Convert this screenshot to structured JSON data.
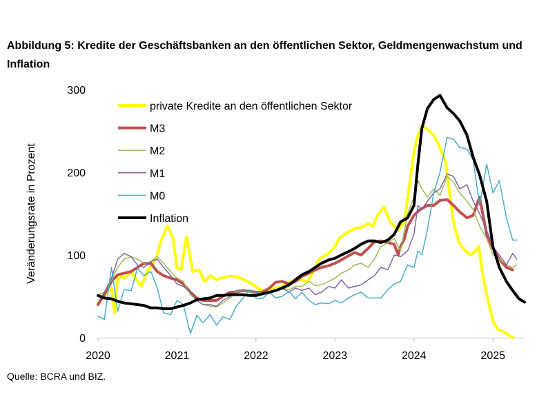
{
  "figure": {
    "title": "Abbildung 5: Kredite der Geschäftsbanken an den öffentlichen Sektor, Geldmengenwachstum und Inflation",
    "source": "Quelle: BCRA und BIZ."
  },
  "chart_data": {
    "type": "line",
    "title": "Abbildung 5: Kredite der Geschäftsbanken an den öffentlichen Sektor, Geldmengenwachstum und Inflation",
    "xlabel": "",
    "ylabel": "Veränderungsrate in Prozent",
    "xlim": [
      2020.0,
      2025.4
    ],
    "ylim": [
      0,
      300
    ],
    "yticks": [
      0,
      100,
      200,
      300
    ],
    "xticks": [
      2020,
      2021,
      2022,
      2023,
      2024,
      2025
    ],
    "grid": false,
    "legend_position": "top-left",
    "series": [
      {
        "name": "private Kredite an den öffentlichen Sektor",
        "color": "#FFFF00",
        "width": 4,
        "x": [
          2020.0,
          2020.08,
          2020.17,
          2020.21,
          2020.25,
          2020.33,
          2020.42,
          2020.5,
          2020.55,
          2020.62,
          2020.7,
          2020.75,
          2020.8,
          2020.88,
          2020.95,
          2021.0,
          2021.05,
          2021.12,
          2021.2,
          2021.28,
          2021.35,
          2021.42,
          2021.5,
          2021.55,
          2021.65,
          2021.75,
          2021.85,
          2021.95,
          2022.05,
          2022.15,
          2022.25,
          2022.35,
          2022.45,
          2022.55,
          2022.65,
          2022.7,
          2022.8,
          2022.85,
          2022.92,
          2023.0,
          2023.05,
          2023.15,
          2023.25,
          2023.35,
          2023.42,
          2023.48,
          2023.55,
          2023.62,
          2023.7,
          2023.8,
          2023.88,
          2023.95,
          2024.0,
          2024.05,
          2024.1,
          2024.17,
          2024.25,
          2024.32,
          2024.4,
          2024.45,
          2024.5,
          2024.57,
          2024.65,
          2024.72,
          2024.78,
          2024.82,
          2024.88,
          2024.95,
          2025.0,
          2025.06,
          2025.12,
          2025.2,
          2025.25
        ],
        "values": [
          42,
          52,
          60,
          30,
          75,
          72,
          80,
          68,
          62,
          80,
          90,
          100,
          118,
          135,
          120,
          85,
          82,
          122,
          80,
          82,
          68,
          75,
          70,
          72,
          74,
          74,
          70,
          65,
          58,
          57,
          60,
          63,
          68,
          70,
          68,
          75,
          95,
          98,
          102,
          110,
          120,
          127,
          132,
          134,
          138,
          135,
          150,
          158,
          140,
          130,
          140,
          190,
          225,
          245,
          256,
          252,
          245,
          232,
          212,
          175,
          140,
          115,
          105,
          100,
          105,
          110,
          70,
          40,
          20,
          10,
          8,
          3,
          0
        ]
      },
      {
        "name": "M3",
        "color": "#C0504D",
        "width": 4,
        "x": [
          2020.0,
          2020.08,
          2020.17,
          2020.25,
          2020.33,
          2020.42,
          2020.5,
          2020.58,
          2020.67,
          2020.75,
          2020.83,
          2020.92,
          2021.0,
          2021.08,
          2021.17,
          2021.25,
          2021.33,
          2021.42,
          2021.5,
          2021.58,
          2021.67,
          2021.75,
          2021.83,
          2021.92,
          2022.0,
          2022.08,
          2022.17,
          2022.25,
          2022.33,
          2022.42,
          2022.5,
          2022.58,
          2022.67,
          2022.75,
          2022.83,
          2022.92,
          2023.0,
          2023.08,
          2023.17,
          2023.25,
          2023.33,
          2023.42,
          2023.5,
          2023.58,
          2023.67,
          2023.75,
          2023.8,
          2023.83,
          2023.88,
          2023.92,
          2024.0,
          2024.08,
          2024.17,
          2024.25,
          2024.33,
          2024.42,
          2024.5,
          2024.58,
          2024.67,
          2024.75,
          2024.83,
          2024.92,
          2025.0,
          2025.08,
          2025.17,
          2025.25
        ],
        "values": [
          40,
          52,
          68,
          76,
          78,
          80,
          85,
          90,
          90,
          80,
          75,
          72,
          70,
          65,
          55,
          48,
          45,
          45,
          45,
          50,
          55,
          55,
          57,
          56,
          55,
          55,
          60,
          67,
          68,
          65,
          68,
          74,
          78,
          82,
          85,
          87,
          90,
          94,
          99,
          103,
          100,
          108,
          116,
          117,
          115,
          113,
          100,
          110,
          120,
          135,
          148,
          155,
          160,
          160,
          166,
          167,
          160,
          152,
          145,
          148,
          170,
          125,
          108,
          95,
          85,
          82
        ]
      },
      {
        "name": "M2",
        "color": "#9BBB59",
        "width": 1.5,
        "x": [
          2020.0,
          2020.08,
          2020.17,
          2020.25,
          2020.33,
          2020.42,
          2020.5,
          2020.58,
          2020.67,
          2020.75,
          2020.83,
          2020.92,
          2021.0,
          2021.08,
          2021.17,
          2021.25,
          2021.33,
          2021.42,
          2021.5,
          2021.58,
          2021.67,
          2021.75,
          2021.83,
          2021.92,
          2022.0,
          2022.08,
          2022.17,
          2022.25,
          2022.33,
          2022.42,
          2022.5,
          2022.58,
          2022.67,
          2022.75,
          2022.83,
          2022.92,
          2023.0,
          2023.08,
          2023.17,
          2023.25,
          2023.33,
          2023.42,
          2023.5,
          2023.58,
          2023.67,
          2023.75,
          2023.83,
          2023.92,
          2024.0,
          2024.05,
          2024.1,
          2024.17,
          2024.25,
          2024.33,
          2024.42,
          2024.5,
          2024.58,
          2024.67,
          2024.75,
          2024.83,
          2024.92,
          2025.0,
          2025.08,
          2025.17,
          2025.25,
          2025.3
        ],
        "values": [
          52,
          55,
          70,
          85,
          95,
          98,
          95,
          90,
          92,
          98,
          90,
          80,
          72,
          68,
          52,
          45,
          40,
          38,
          37,
          42,
          48,
          55,
          58,
          55,
          55,
          54,
          56,
          58,
          60,
          58,
          62,
          62,
          68,
          63,
          64,
          68,
          72,
          78,
          82,
          88,
          90,
          85,
          95,
          110,
          115,
          120,
          105,
          150,
          170,
          190,
          180,
          170,
          180,
          172,
          195,
          188,
          175,
          165,
          155,
          135,
          120,
          100,
          95,
          88,
          85,
          88
        ]
      },
      {
        "name": "M1",
        "color": "#8064A2",
        "width": 1.5,
        "x": [
          2020.0,
          2020.08,
          2020.17,
          2020.25,
          2020.33,
          2020.42,
          2020.5,
          2020.58,
          2020.67,
          2020.75,
          2020.83,
          2020.92,
          2021.0,
          2021.08,
          2021.17,
          2021.25,
          2021.33,
          2021.42,
          2021.5,
          2021.58,
          2021.67,
          2021.75,
          2021.83,
          2021.92,
          2022.0,
          2022.08,
          2022.17,
          2022.25,
          2022.33,
          2022.42,
          2022.5,
          2022.58,
          2022.67,
          2022.75,
          2022.83,
          2022.92,
          2023.0,
          2023.08,
          2023.17,
          2023.25,
          2023.33,
          2023.42,
          2023.5,
          2023.58,
          2023.67,
          2023.75,
          2023.83,
          2023.92,
          2024.0,
          2024.05,
          2024.1,
          2024.17,
          2024.25,
          2024.33,
          2024.42,
          2024.5,
          2024.58,
          2024.67,
          2024.75,
          2024.83,
          2024.92,
          2025.0,
          2025.08,
          2025.17,
          2025.25,
          2025.3
        ],
        "values": [
          42,
          55,
          72,
          95,
          102,
          98,
          88,
          85,
          92,
          95,
          85,
          75,
          65,
          62,
          55,
          45,
          40,
          40,
          38,
          45,
          50,
          57,
          58,
          57,
          55,
          52,
          55,
          58,
          60,
          55,
          60,
          57,
          60,
          52,
          55,
          62,
          60,
          70,
          60,
          62,
          64,
          70,
          75,
          85,
          82,
          100,
          98,
          105,
          125,
          160,
          155,
          165,
          175,
          180,
          198,
          195,
          180,
          185,
          165,
          150,
          130,
          110,
          100,
          88,
          102,
          95
        ]
      },
      {
        "name": "M0",
        "color": "#4BACC6",
        "width": 1.5,
        "x": [
          2020.0,
          2020.08,
          2020.17,
          2020.25,
          2020.33,
          2020.42,
          2020.5,
          2020.58,
          2020.67,
          2020.75,
          2020.83,
          2020.92,
          2021.0,
          2021.08,
          2021.17,
          2021.25,
          2021.33,
          2021.42,
          2021.5,
          2021.58,
          2021.67,
          2021.75,
          2021.83,
          2021.92,
          2022.0,
          2022.08,
          2022.17,
          2022.25,
          2022.33,
          2022.42,
          2022.5,
          2022.58,
          2022.67,
          2022.75,
          2022.83,
          2022.92,
          2023.0,
          2023.08,
          2023.17,
          2023.25,
          2023.33,
          2023.42,
          2023.5,
          2023.58,
          2023.67,
          2023.75,
          2023.83,
          2023.92,
          2024.0,
          2024.05,
          2024.1,
          2024.17,
          2024.25,
          2024.33,
          2024.42,
          2024.5,
          2024.58,
          2024.67,
          2024.75,
          2024.83,
          2024.92,
          2025.0,
          2025.08,
          2025.17,
          2025.25,
          2025.3
        ],
        "values": [
          26,
          22,
          85,
          32,
          58,
          57,
          84,
          75,
          80,
          60,
          30,
          28,
          45,
          40,
          5,
          27,
          18,
          28,
          15,
          25,
          22,
          38,
          47,
          58,
          48,
          47,
          55,
          48,
          50,
          56,
          47,
          55,
          45,
          40,
          42,
          41,
          45,
          42,
          48,
          52,
          55,
          48,
          48,
          48,
          58,
          65,
          68,
          88,
          85,
          105,
          100,
          130,
          175,
          200,
          242,
          240,
          230,
          228,
          215,
          160,
          210,
          175,
          190,
          145,
          118,
          118
        ]
      },
      {
        "name": "Inflation",
        "color": "#000000",
        "width": 4,
        "x": [
          2020.0,
          2020.08,
          2020.17,
          2020.25,
          2020.33,
          2020.42,
          2020.5,
          2020.58,
          2020.67,
          2020.75,
          2020.83,
          2020.92,
          2021.0,
          2021.08,
          2021.17,
          2021.25,
          2021.33,
          2021.42,
          2021.5,
          2021.58,
          2021.67,
          2021.75,
          2021.83,
          2021.92,
          2022.0,
          2022.08,
          2022.17,
          2022.25,
          2022.33,
          2022.42,
          2022.5,
          2022.58,
          2022.67,
          2022.75,
          2022.83,
          2022.92,
          2023.0,
          2023.08,
          2023.17,
          2023.25,
          2023.33,
          2023.42,
          2023.5,
          2023.58,
          2023.67,
          2023.75,
          2023.83,
          2023.92,
          2024.0,
          2024.05,
          2024.1,
          2024.17,
          2024.25,
          2024.33,
          2024.42,
          2024.5,
          2024.58,
          2024.67,
          2024.75,
          2024.83,
          2024.92,
          2025.0,
          2025.08,
          2025.17,
          2025.25,
          2025.33,
          2025.4
        ],
        "values": [
          51,
          48,
          47,
          44,
          42,
          41,
          40,
          39,
          36,
          36,
          35,
          35,
          37,
          39,
          42,
          46,
          47,
          48,
          51,
          51,
          52,
          52,
          52,
          51,
          51,
          53,
          55,
          57,
          60,
          64,
          70,
          76,
          80,
          85,
          90,
          94,
          96,
          100,
          104,
          108,
          113,
          117,
          117,
          115,
          118,
          125,
          140,
          145,
          160,
          210,
          253,
          277,
          288,
          293,
          278,
          271,
          262,
          245,
          218,
          197,
          165,
          110,
          85,
          68,
          57,
          47,
          43
        ]
      }
    ]
  }
}
